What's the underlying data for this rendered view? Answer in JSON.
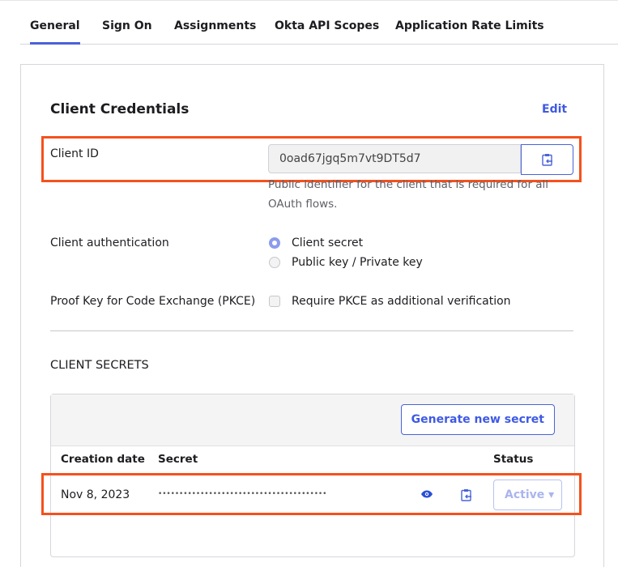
{
  "tabs": [
    {
      "label": "General"
    },
    {
      "label": "Sign On"
    },
    {
      "label": "Assignments"
    },
    {
      "label": "Okta API Scopes"
    },
    {
      "label": "Application Rate Limits"
    }
  ],
  "credentials": {
    "title": "Client Credentials",
    "edit_label": "Edit",
    "client_id_label": "Client ID",
    "client_id_value": "0oad67jgq5m7vt9DT5d7",
    "client_id_help": "Public identifier for the client that is required for all OAuth flows.",
    "auth_label": "Client authentication",
    "auth_options": [
      {
        "label": "Client secret",
        "selected": true
      },
      {
        "label": "Public key / Private key",
        "selected": false
      }
    ],
    "pkce_label": "Proof Key for Code Exchange (PKCE)",
    "pkce_option": "Require PKCE as additional verification",
    "pkce_checked": false
  },
  "secrets": {
    "title": "CLIENT SECRETS",
    "generate_label": "Generate new secret",
    "columns": [
      "Creation date",
      "Secret",
      "Status"
    ],
    "rows": [
      {
        "date": "Nov 8, 2023",
        "secret": "••••••••••••••••••••••••••••••••••••••••",
        "status": "Active ▾"
      }
    ]
  },
  "colors": {
    "accent": "#4a63d8",
    "highlight": "#f5511d"
  },
  "icons": [
    "clipboard-copy-icon",
    "eye-icon"
  ]
}
